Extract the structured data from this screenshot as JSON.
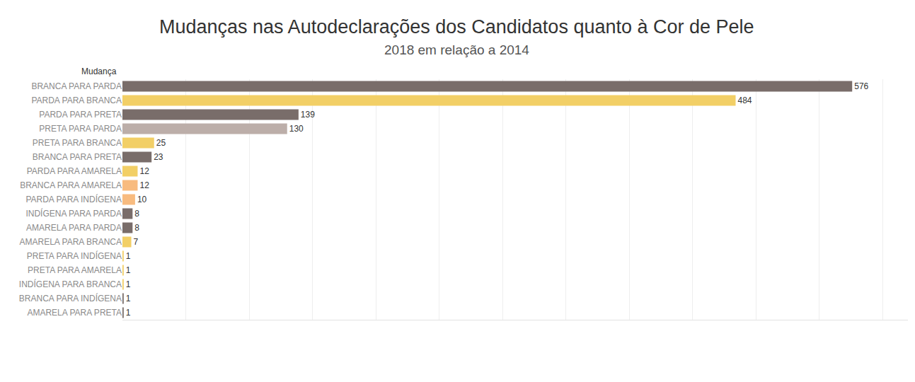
{
  "chart_data": {
    "type": "bar",
    "title": "Mudanças nas Autodeclarações dos Candidatos quanto à Cor de Pele",
    "subtitle": "2018 em relação a 2014",
    "ylabel": "Mudança",
    "orientation": "horizontal",
    "categories": [
      "BRANCA PARA PARDA",
      "PARDA PARA BRANCA",
      "PARDA PARA PRETA",
      "PRETA PARA PARDA",
      "PRETA PARA BRANCA",
      "BRANCA PARA PRETA",
      "PARDA PARA AMARELA",
      "BRANCA PARA AMARELA",
      "PARDA PARA INDÍGENA",
      "INDÍGENA PARA PARDA",
      "AMARELA PARA PARDA",
      "AMARELA PARA BRANCA",
      "PRETA PARA INDÍGENA",
      "PRETA PARA AMARELA",
      "INDÍGENA PARA BRANCA",
      "BRANCA PARA INDÍGENA",
      "AMARELA PARA PRETA"
    ],
    "values": [
      576,
      484,
      139,
      130,
      25,
      23,
      12,
      12,
      10,
      8,
      8,
      7,
      1,
      1,
      1,
      1,
      1
    ],
    "colors": [
      "#796d6a",
      "#f2cf66",
      "#796d6a",
      "#bcaea9",
      "#f2cf66",
      "#796d6a",
      "#f2cf66",
      "#f8bb7f",
      "#f8bb7f",
      "#796d6a",
      "#796d6a",
      "#f2cf66",
      "#f2cf66",
      "#f2cf66",
      "#f2cf66",
      "#796d6a",
      "#796d6a"
    ],
    "xlim": [
      0,
      620
    ],
    "xticks": [
      0,
      50,
      100,
      150,
      200,
      250,
      300,
      350,
      400,
      450,
      500,
      550,
      600
    ],
    "grid": true,
    "data_labels": true,
    "tick_labels": "y"
  }
}
